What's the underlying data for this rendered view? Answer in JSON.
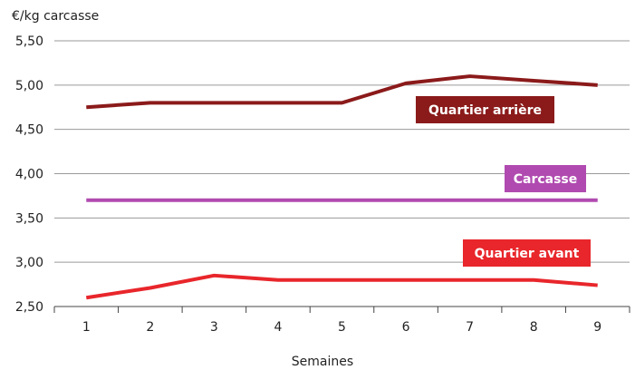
{
  "chart_data": {
    "type": "line",
    "ylabel": "€/kg carcasse",
    "xlabel": "Semaines",
    "x": [
      1,
      2,
      3,
      4,
      5,
      6,
      7,
      8,
      9
    ],
    "ylim": [
      2.5,
      5.5
    ],
    "yticks": [
      "2,50",
      "3,00",
      "3,50",
      "4,00",
      "4,50",
      "5,00",
      "5,50"
    ],
    "grid": true,
    "series": [
      {
        "name": "Quartier arrière",
        "color": "#8b1a1a",
        "values": [
          4.75,
          4.8,
          4.8,
          4.8,
          4.8,
          5.02,
          5.1,
          5.05,
          5.0
        ]
      },
      {
        "name": "Carcasse",
        "color": "#b04ab0",
        "values": [
          3.7,
          3.7,
          3.7,
          3.7,
          3.7,
          3.7,
          3.7,
          3.7,
          3.7
        ]
      },
      {
        "name": "Quartier avant",
        "color": "#e8262b",
        "values": [
          2.6,
          2.71,
          2.85,
          2.8,
          2.8,
          2.8,
          2.8,
          2.8,
          2.74
        ]
      }
    ]
  }
}
